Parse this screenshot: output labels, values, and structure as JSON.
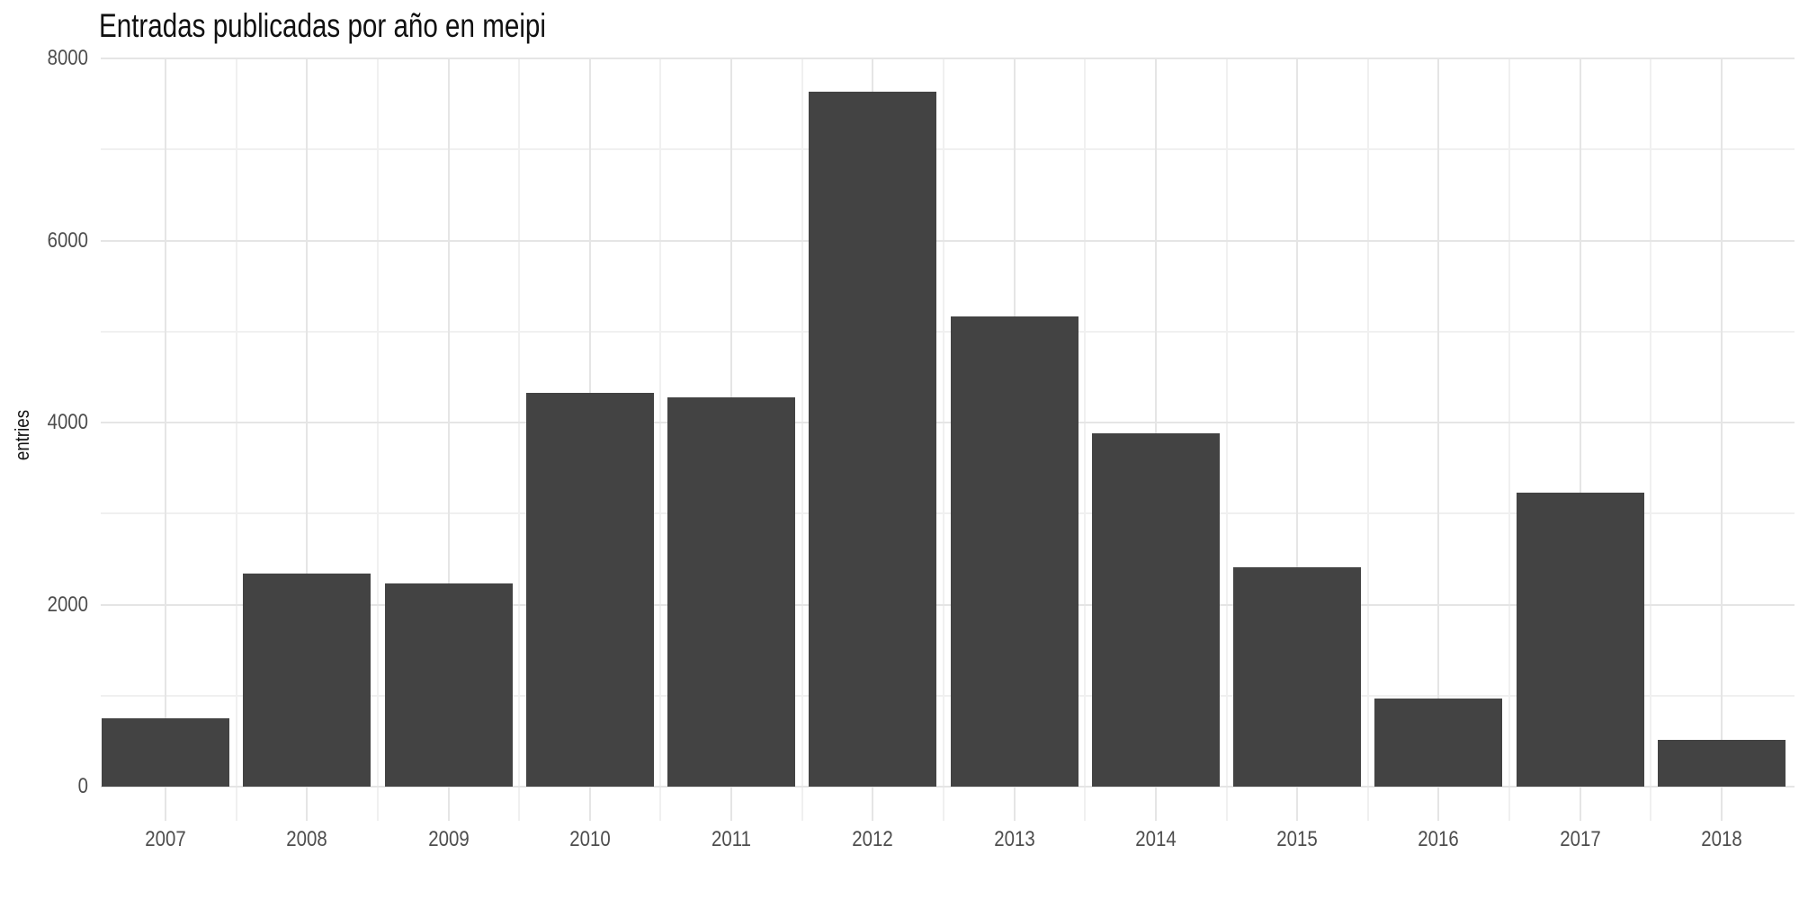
{
  "chart_data": {
    "type": "bar",
    "title": "Entradas publicadas por año en meipi",
    "ylabel": "entries",
    "xlabel": "",
    "categories": [
      "2007",
      "2008",
      "2009",
      "2010",
      "2011",
      "2012",
      "2013",
      "2014",
      "2015",
      "2016",
      "2017",
      "2018"
    ],
    "values": [
      750,
      2340,
      2230,
      4330,
      4280,
      7630,
      5170,
      3880,
      2410,
      970,
      3230,
      510
    ],
    "ylim": [
      0,
      8000
    ],
    "yticks": [
      0,
      2000,
      4000,
      6000,
      8000
    ],
    "ytick_labels": [
      "0",
      "2000",
      "4000",
      "6000",
      "8000"
    ],
    "minor_yticks": [
      1000,
      3000,
      5000,
      7000
    ],
    "grid": {
      "horizontal": "major+minor",
      "vertical": "major+minor"
    },
    "legend_position": "none",
    "colors": {
      "background": "#ffffff",
      "bar": "#434343",
      "grid_major": "#e5e5e5",
      "grid_minor": "#f0f0f0",
      "axis_text": "#4d4d4d",
      "axis_title_text": "#141414",
      "title_text": "#111111"
    }
  }
}
